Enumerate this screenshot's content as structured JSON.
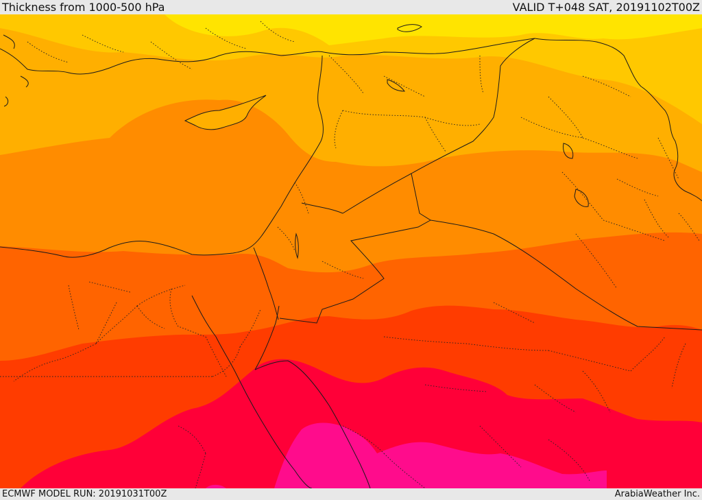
{
  "header": {
    "title": "Thickness from 1000-500 hPa",
    "valid": "VALID T+048 SAT, 20191102T00Z"
  },
  "footer": {
    "model_run": "ECMWF MODEL RUN: 20191031T00Z",
    "credit": "ArabiaWeather Inc."
  },
  "colors": {
    "band_yellow": "#ffe400",
    "band_gold": "#ffc800",
    "band_amber": "#ffaf00",
    "band_orange": "#ff8c00",
    "band_dark_orange": "#ff6400",
    "band_red_orange": "#ff3c00",
    "band_crimson": "#ff0038",
    "band_magenta": "#ff0c8c",
    "coastline": "#1a1a1a",
    "border_dotted": "#222222"
  }
}
